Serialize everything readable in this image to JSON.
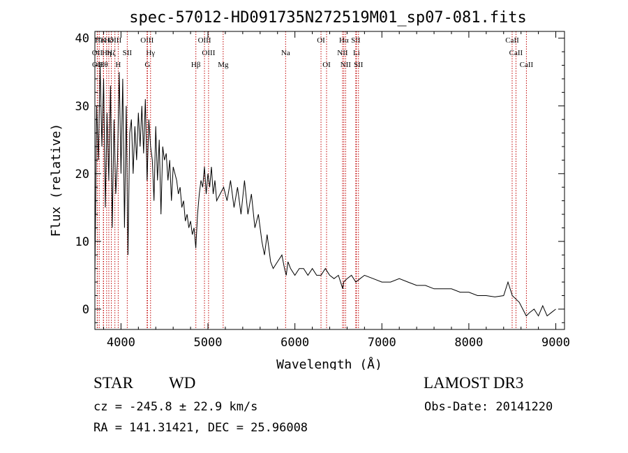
{
  "chart_data": {
    "type": "line",
    "title": "spec-57012-HD091735N272519M01_sp07-081.fits",
    "xlabel": "Wavelength (Å)",
    "ylabel": "Flux (relative)",
    "xlim": [
      3700,
      9100
    ],
    "ylim": [
      -3,
      41
    ],
    "xticks": [
      4000,
      5000,
      6000,
      7000,
      8000,
      9000
    ],
    "yticks": [
      0,
      10,
      20,
      30,
      40
    ],
    "series": [
      {
        "name": "spectrum",
        "x": [
          3700,
          3720,
          3740,
          3760,
          3780,
          3800,
          3820,
          3840,
          3860,
          3880,
          3900,
          3920,
          3940,
          3960,
          3980,
          4000,
          4020,
          4040,
          4060,
          4080,
          4100,
          4120,
          4140,
          4160,
          4180,
          4200,
          4220,
          4240,
          4260,
          4280,
          4300,
          4320,
          4340,
          4360,
          4380,
          4400,
          4420,
          4440,
          4460,
          4480,
          4500,
          4520,
          4540,
          4560,
          4580,
          4600,
          4620,
          4640,
          4660,
          4680,
          4700,
          4720,
          4740,
          4760,
          4780,
          4800,
          4820,
          4840,
          4860,
          4880,
          4900,
          4920,
          4940,
          4960,
          4980,
          5000,
          5020,
          5040,
          5060,
          5080,
          5100,
          5140,
          5180,
          5220,
          5260,
          5300,
          5340,
          5380,
          5420,
          5460,
          5500,
          5540,
          5580,
          5620,
          5650,
          5680,
          5700,
          5720,
          5750,
          5800,
          5850,
          5880,
          5900,
          5920,
          5950,
          6000,
          6050,
          6100,
          6150,
          6200,
          6250,
          6300,
          6350,
          6400,
          6450,
          6500,
          6550,
          6560,
          6600,
          6650,
          6700,
          6750,
          6800,
          6900,
          7000,
          7100,
          7200,
          7300,
          7400,
          7500,
          7600,
          7700,
          7800,
          7900,
          8000,
          8100,
          8200,
          8300,
          8400,
          8450,
          8500,
          8540,
          8580,
          8620,
          8660,
          8700,
          8750,
          8800,
          8850,
          8900,
          8950,
          9000
        ],
        "values": [
          5,
          30,
          22,
          36,
          24,
          34,
          15,
          29,
          19,
          33,
          12,
          28,
          17,
          22,
          35,
          20,
          34,
          12,
          30,
          8,
          26,
          28,
          20,
          27,
          22,
          29,
          24,
          30,
          23,
          31,
          19,
          28,
          24,
          22,
          16,
          27,
          19,
          25,
          14,
          24,
          22,
          23,
          19,
          22,
          16,
          21,
          20,
          19,
          17,
          18,
          15,
          16,
          13,
          14,
          12,
          13,
          11,
          12,
          9,
          14,
          17,
          19,
          18,
          21,
          17,
          20,
          18,
          21,
          17,
          19,
          16,
          17,
          18,
          16,
          19,
          15,
          18,
          14,
          19,
          14,
          17,
          12,
          14,
          10,
          8,
          11,
          9,
          7,
          6,
          7,
          8,
          6,
          5,
          7,
          6,
          5,
          6,
          6,
          5,
          6,
          5,
          5,
          6,
          5,
          4.5,
          5,
          3,
          4,
          4.5,
          5,
          4,
          4.5,
          5,
          4.5,
          4,
          4,
          4.5,
          4,
          3.5,
          3.5,
          3,
          3,
          3,
          2.5,
          2.5,
          2,
          2,
          1.8,
          2,
          4,
          2,
          1.5,
          1,
          0,
          -1,
          -0.5,
          0,
          -1,
          0.5,
          -1,
          -0.5,
          0
        ]
      }
    ],
    "lines": [
      {
        "label": "Hε",
        "x": 3750,
        "row": 0
      },
      {
        "label": "K",
        "x": 3800,
        "row": 0
      },
      {
        "label": "Hδ",
        "x": 3860,
        "row": 0
      },
      {
        "label": "OIII",
        "x": 3930,
        "row": 0
      },
      {
        "label": "OIII",
        "x": 4300,
        "row": 0
      },
      {
        "label": "OIII",
        "x": 4960,
        "row": 0
      },
      {
        "label": "OI",
        "x": 6300,
        "row": 0
      },
      {
        "label": "Hα",
        "x": 6563,
        "row": 0
      },
      {
        "label": "SII",
        "x": 6700,
        "row": 0
      },
      {
        "label": "CaII",
        "x": 8498,
        "row": 0
      },
      {
        "label": "OII",
        "x": 3727,
        "row": 1
      },
      {
        "label": "Hη",
        "x": 3835,
        "row": 1
      },
      {
        "label": "Hζ",
        "x": 3889,
        "row": 1
      },
      {
        "label": "SII",
        "x": 4072,
        "row": 1
      },
      {
        "label": "Hγ",
        "x": 4340,
        "row": 1
      },
      {
        "label": "OIII",
        "x": 5007,
        "row": 1
      },
      {
        "label": "Na",
        "x": 5893,
        "row": 1
      },
      {
        "label": "NII",
        "x": 6548,
        "row": 1
      },
      {
        "label": "Li",
        "x": 6708,
        "row": 1
      },
      {
        "label": "CaII",
        "x": 8542,
        "row": 1
      },
      {
        "label": "OII",
        "x": 3729,
        "row": 2
      },
      {
        "label": "Hθ",
        "x": 3797,
        "row": 2
      },
      {
        "label": "H",
        "x": 3968,
        "row": 2
      },
      {
        "label": "G",
        "x": 4305,
        "row": 2
      },
      {
        "label": "Hβ",
        "x": 4861,
        "row": 2
      },
      {
        "label": "Mg",
        "x": 5175,
        "row": 2
      },
      {
        "label": "OI",
        "x": 6364,
        "row": 2
      },
      {
        "label": "NII",
        "x": 6583,
        "row": 2
      },
      {
        "label": "SII",
        "x": 6731,
        "row": 2
      },
      {
        "label": "CaII",
        "x": 8662,
        "row": 2
      }
    ]
  },
  "info": {
    "class": "STAR",
    "subclass": "WD",
    "survey": "LAMOST DR3",
    "cz": "cz = -245.8 ± 22.9 km/s",
    "obs_date": "Obs-Date: 20141220",
    "radec": "RA = 141.31421, DEC =  25.96008"
  }
}
